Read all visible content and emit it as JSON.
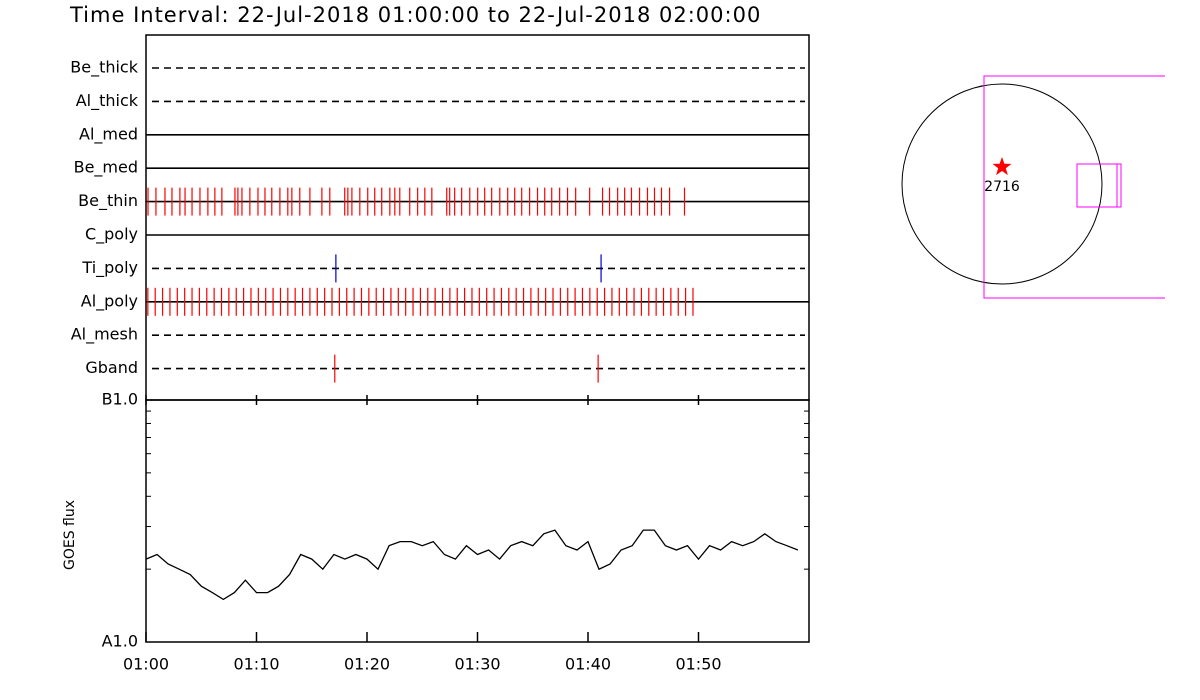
{
  "title": "Time Interval: 22-Jul-2018 01:00:00 to 22-Jul-2018 02:00:00",
  "chart_data": [
    {
      "type": "timeline",
      "xlim": [
        "01:00:00",
        "02:00:00"
      ],
      "rows": [
        {
          "name": "Be_thick",
          "style": "dashed"
        },
        {
          "name": "Al_thick",
          "style": "dashed"
        },
        {
          "name": "Al_med",
          "style": "solid"
        },
        {
          "name": "Be_med",
          "style": "solid"
        },
        {
          "name": "Be_thin",
          "style": "solid",
          "color": "#ff0000",
          "events": [
            "01:00:11",
            "01:00:54",
            "01:01:43",
            "01:02:21",
            "01:03:04",
            "01:03:32",
            "01:04:10",
            "01:04:53",
            "01:05:36",
            "01:06:14",
            "01:06:52",
            "01:08:03",
            "01:08:19",
            "01:08:41",
            "01:09:24",
            "01:10:08",
            "01:10:46",
            "01:11:23",
            "01:12:07",
            "01:12:50",
            "01:13:12",
            "01:13:55",
            "01:14:50",
            "01:15:55",
            "01:16:38",
            "01:17:59",
            "01:18:16",
            "01:18:38",
            "01:19:21",
            "01:20:04",
            "01:20:42",
            "01:21:20",
            "01:22:04",
            "01:22:31",
            "01:22:58",
            "01:23:52",
            "01:24:35",
            "01:25:14",
            "01:25:52",
            "01:27:13",
            "01:27:29",
            "01:27:56",
            "01:28:34",
            "01:29:18",
            "01:30:01",
            "01:30:39",
            "01:31:17",
            "01:32:01",
            "01:32:44",
            "01:33:22",
            "01:34:00",
            "01:34:43",
            "01:35:26",
            "01:36:05",
            "01:36:43",
            "01:37:26",
            "01:38:09",
            "01:38:53",
            "01:40:09",
            "01:41:19",
            "01:41:57",
            "01:42:41",
            "01:43:19",
            "01:43:56",
            "01:44:40",
            "01:45:23",
            "01:46:01",
            "01:46:39",
            "01:47:23",
            "01:48:44"
          ]
        },
        {
          "name": "C_poly",
          "style": "solid"
        },
        {
          "name": "Ti_poly",
          "style": "dashed",
          "color": "#0000cc",
          "events": [
            "01:17:11",
            "01:41:11"
          ]
        },
        {
          "name": "Al_poly",
          "style": "solid",
          "color": "#ff0000",
          "events": [
            "01:00:10",
            "01:00:50",
            "01:01:30",
            "01:02:10",
            "01:02:50",
            "01:03:30",
            "01:04:10",
            "01:04:50",
            "01:05:30",
            "01:06:10",
            "01:06:50",
            "01:07:30",
            "01:08:10",
            "01:08:50",
            "01:09:30",
            "01:10:10",
            "01:10:50",
            "01:11:30",
            "01:12:10",
            "01:12:50",
            "01:13:30",
            "01:14:10",
            "01:14:50",
            "01:15:30",
            "01:16:10",
            "01:16:50",
            "01:17:30",
            "01:18:10",
            "01:18:50",
            "01:19:30",
            "01:20:10",
            "01:20:50",
            "01:21:30",
            "01:22:10",
            "01:22:50",
            "01:23:30",
            "01:24:10",
            "01:24:50",
            "01:25:30",
            "01:26:10",
            "01:26:50",
            "01:27:30",
            "01:28:10",
            "01:28:50",
            "01:29:30",
            "01:30:10",
            "01:30:50",
            "01:31:30",
            "01:32:10",
            "01:32:50",
            "01:33:30",
            "01:34:10",
            "01:34:50",
            "01:35:30",
            "01:36:10",
            "01:36:50",
            "01:37:30",
            "01:38:10",
            "01:38:50",
            "01:39:30",
            "01:40:10",
            "01:40:50",
            "01:41:30",
            "01:42:10",
            "01:42:50",
            "01:43:30",
            "01:44:10",
            "01:44:50",
            "01:45:30",
            "01:46:10",
            "01:46:50",
            "01:47:30",
            "01:48:10",
            "01:48:50",
            "01:49:30"
          ]
        },
        {
          "name": "Al_mesh",
          "style": "dashed"
        },
        {
          "name": "Gband",
          "style": "dashed",
          "color": "#ff0000",
          "events": [
            "01:17:05",
            "01:40:55"
          ]
        }
      ]
    },
    {
      "type": "line",
      "ylabel": "GOES flux",
      "color": "#000000",
      "ylog": true,
      "ylim": [
        1e-08,
        1e-07
      ],
      "yticks": [
        {
          "value": 1e-08,
          "label": "A1.0"
        },
        {
          "value": 1e-07,
          "label": "B1.0"
        }
      ],
      "yminor": [
        2e-08,
        3e-08,
        4e-08,
        5e-08,
        6e-08,
        7e-08,
        8e-08,
        9e-08
      ],
      "xlim": [
        "01:00",
        "02:00"
      ],
      "xticks": [
        "01:00",
        "01:10",
        "01:20",
        "01:30",
        "01:40",
        "01:50"
      ],
      "x": [
        "01:00",
        "01:01",
        "01:02",
        "01:03",
        "01:04",
        "01:05",
        "01:06",
        "01:07",
        "01:08",
        "01:09",
        "01:10",
        "01:11",
        "01:12",
        "01:13",
        "01:14",
        "01:15",
        "01:16",
        "01:17",
        "01:18",
        "01:19",
        "01:20",
        "01:21",
        "01:22",
        "01:23",
        "01:24",
        "01:25",
        "01:26",
        "01:27",
        "01:28",
        "01:29",
        "01:30",
        "01:31",
        "01:32",
        "01:33",
        "01:34",
        "01:35",
        "01:36",
        "01:37",
        "01:38",
        "01:39",
        "01:40",
        "01:41",
        "01:42",
        "01:43",
        "01:44",
        "01:45",
        "01:46",
        "01:47",
        "01:48",
        "01:49",
        "01:50",
        "01:51",
        "01:52",
        "01:53",
        "01:54",
        "01:55",
        "01:56",
        "01:57",
        "01:58",
        "01:59"
      ],
      "values": [
        2.2e-08,
        2.3e-08,
        2.1e-08,
        2e-08,
        1.9e-08,
        1.7e-08,
        1.6e-08,
        1.5e-08,
        1.6e-08,
        1.8e-08,
        1.6e-08,
        1.6e-08,
        1.7e-08,
        1.9e-08,
        2.3e-08,
        2.2e-08,
        2e-08,
        2.3e-08,
        2.2e-08,
        2.3e-08,
        2.2e-08,
        2e-08,
        2.5e-08,
        2.6e-08,
        2.6e-08,
        2.5e-08,
        2.6e-08,
        2.3e-08,
        2.2e-08,
        2.5e-08,
        2.3e-08,
        2.4e-08,
        2.2e-08,
        2.5e-08,
        2.6e-08,
        2.5e-08,
        2.8e-08,
        2.9e-08,
        2.5e-08,
        2.4e-08,
        2.6e-08,
        2e-08,
        2.1e-08,
        2.4e-08,
        2.5e-08,
        2.9e-08,
        2.9e-08,
        2.5e-08,
        2.4e-08,
        2.5e-08,
        2.2e-08,
        2.5e-08,
        2.4e-08,
        2.6e-08,
        2.5e-08,
        2.6e-08,
        2.8e-08,
        2.6e-08,
        2.5e-08,
        2.4e-08
      ]
    }
  ],
  "sun_map": {
    "region_label": "2716",
    "star_color": "#ff0000",
    "box_color": "#ff00ff"
  }
}
